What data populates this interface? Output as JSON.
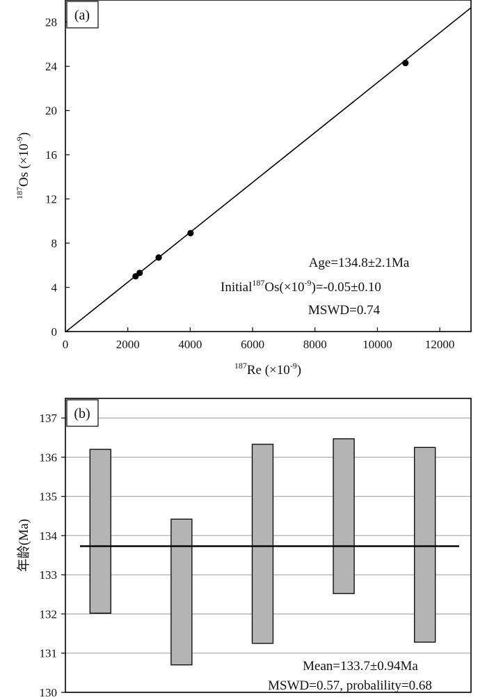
{
  "chart_data": [
    {
      "type": "scatter",
      "panel_label": "(a)",
      "xlabel": {
        "sup": "187",
        "base": "Re (×10",
        "exp": "-9",
        "close": ")"
      },
      "ylabel": {
        "sup": "187",
        "base": "Os (×10",
        "exp": "-9",
        "close": ")"
      },
      "xlim": [
        0,
        13000
      ],
      "ylim": [
        0,
        30
      ],
      "xticks": [
        0,
        2000,
        4000,
        6000,
        8000,
        10000,
        12000
      ],
      "yticks": [
        0,
        4,
        8,
        12,
        16,
        20,
        24,
        28
      ],
      "series": [
        {
          "name": "samples",
          "x": [
            2250,
            2380,
            2990,
            4010,
            10900
          ],
          "y": [
            5.0,
            5.3,
            6.7,
            8.9,
            24.3
          ]
        }
      ],
      "isochron": {
        "x": [
          0,
          13000
        ],
        "y": [
          -0.05,
          29.3
        ]
      },
      "annotations": {
        "age": "Age=134.8±2.1Ma",
        "initial_prefix": "Initial",
        "initial_sup": "187",
        "initial_mid": "Os(×10",
        "initial_exp": "-9",
        "initial_suffix": ")=-0.05±0.10",
        "mswd": "MSWD=0.74"
      }
    },
    {
      "type": "bar",
      "panel_label": "(b)",
      "ylabel": "年龄(Ma)",
      "ylim": [
        130,
        137.5
      ],
      "yticks": [
        130,
        131,
        132,
        133,
        134,
        135,
        136,
        137
      ],
      "grid": true,
      "boxes": [
        {
          "low": 132.02,
          "high": 136.2
        },
        {
          "low": 130.7,
          "high": 134.42
        },
        {
          "low": 131.25,
          "high": 136.33
        },
        {
          "low": 132.52,
          "high": 136.47
        },
        {
          "low": 131.28,
          "high": 136.25
        }
      ],
      "mean": 133.73,
      "colors": {
        "box_fill": "#b4b4b4",
        "box_stroke": "#000000",
        "grid": "#9a9a9a"
      },
      "annotations": {
        "mean": "Mean=133.7±0.94Ma",
        "mswd": "MSWD=0.57, probalility=0.68"
      }
    }
  ]
}
